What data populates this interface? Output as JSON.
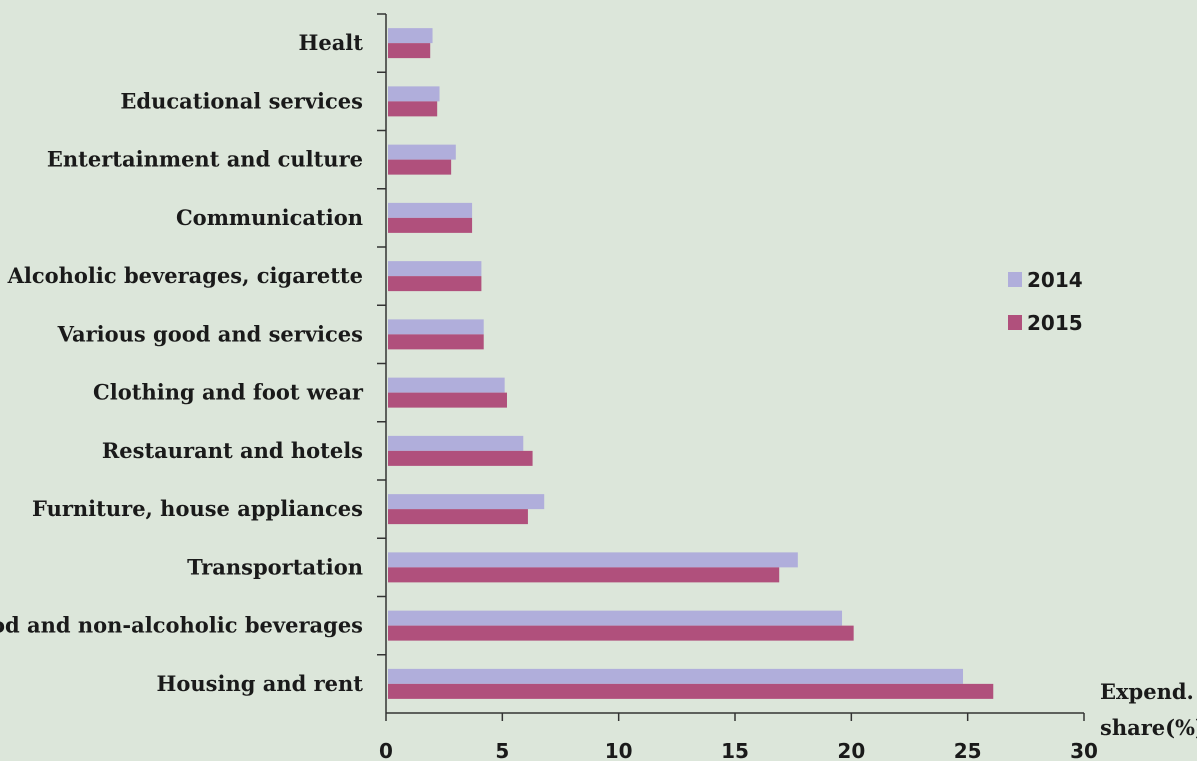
{
  "chart_data": {
    "type": "bar",
    "orientation": "horizontal",
    "title": "",
    "xlabel": [
      "Expend.",
      "share(%)"
    ],
    "ylabel": "",
    "xlim": [
      0,
      30
    ],
    "xticks": [
      0,
      5,
      10,
      15,
      20,
      25,
      30
    ],
    "grid": false,
    "legend_position": "right",
    "categories": [
      "Healt",
      "Educational services",
      "Entertainment and culture",
      "Communication",
      "Alcoholic beverages, cigarette",
      "Various good and services",
      "Clothing and foot wear",
      "Restaurant and hotels",
      "Furniture, house appliances",
      "Transportation",
      "Food and non-alcoholic beverages",
      "Housing and rent"
    ],
    "series": [
      {
        "name": "2014",
        "color": "#b0aedb",
        "values": [
          2.0,
          2.3,
          3.0,
          3.7,
          4.1,
          4.2,
          5.1,
          5.9,
          6.8,
          17.7,
          19.6,
          24.8
        ]
      },
      {
        "name": "2015",
        "color": "#b0507c",
        "values": [
          1.9,
          2.2,
          2.8,
          3.7,
          4.1,
          4.2,
          5.2,
          6.3,
          6.1,
          16.9,
          20.1,
          26.1
        ]
      }
    ]
  }
}
